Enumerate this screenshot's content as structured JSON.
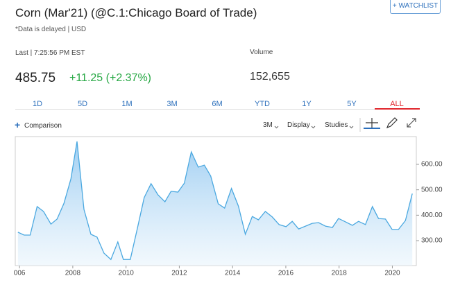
{
  "header": {
    "title": "Corn (Mar'21) (@C.1:Chicago Board of Trade)",
    "note": "*Data is delayed | USD",
    "watchlist_button": "+ WATCHLIST"
  },
  "quote": {
    "last_label": "Last | 7:25:56 PM EST",
    "last": "485.75",
    "change": "+11.25 (+2.37%)",
    "volume_label": "Volume",
    "volume": "152,655"
  },
  "range_tabs": [
    "1D",
    "5D",
    "1M",
    "3M",
    "6M",
    "YTD",
    "1Y",
    "5Y",
    "ALL"
  ],
  "toolbar": {
    "comparison": "Comparison",
    "interval": "3M",
    "display": "Display",
    "studies": "Studies"
  },
  "chart_data": {
    "type": "area",
    "color": "#4aa8e0",
    "x": [
      2005.94,
      2006.17,
      2006.4,
      2006.66,
      2006.9,
      2007.18,
      2007.41,
      2007.67,
      2007.93,
      2008.16,
      2008.42,
      2008.68,
      2008.91,
      2009.17,
      2009.43,
      2009.69,
      2009.9,
      2010.16,
      2010.42,
      2010.68,
      2010.94,
      2011.2,
      2011.46,
      2011.69,
      2011.95,
      2012.19,
      2012.45,
      2012.71,
      2012.94,
      2013.18,
      2013.46,
      2013.7,
      2013.96,
      2014.22,
      2014.48,
      2014.74,
      2014.97,
      2015.23,
      2015.49,
      2015.75,
      2016.01,
      2016.24,
      2016.48,
      2016.74,
      2016.99,
      2017.23,
      2017.49,
      2017.75,
      2017.98,
      2018.24,
      2018.5,
      2018.73,
      2018.99,
      2019.25,
      2019.48,
      2019.74,
      2019.99,
      2020.23,
      2020.49,
      2020.75
    ],
    "values": [
      333,
      322,
      322,
      434,
      415,
      365,
      385,
      447,
      543,
      690,
      423,
      325,
      314,
      251,
      226,
      295,
      226,
      226,
      346,
      469,
      524,
      480,
      453,
      494,
      491,
      526,
      649,
      589,
      597,
      554,
      445,
      428,
      505,
      436,
      325,
      395,
      382,
      415,
      393,
      363,
      355,
      376,
      346,
      357,
      368,
      371,
      357,
      352,
      387,
      374,
      360,
      376,
      363,
      434,
      387,
      385,
      344,
      344,
      379,
      485
    ],
    "xlim": [
      2005.84,
      2020.9
    ],
    "ylim": [
      202,
      709
    ],
    "xticks": [
      {
        "value": 2006,
        "label": "006"
      },
      2008,
      2010,
      2012,
      2014,
      2016,
      2018,
      2020
    ],
    "yticks": [
      {
        "value": 300,
        "label": "300.00"
      },
      {
        "value": 400,
        "label": "400.00"
      },
      {
        "value": 500,
        "label": "500.00"
      },
      {
        "value": 600,
        "label": "600.00"
      }
    ]
  }
}
